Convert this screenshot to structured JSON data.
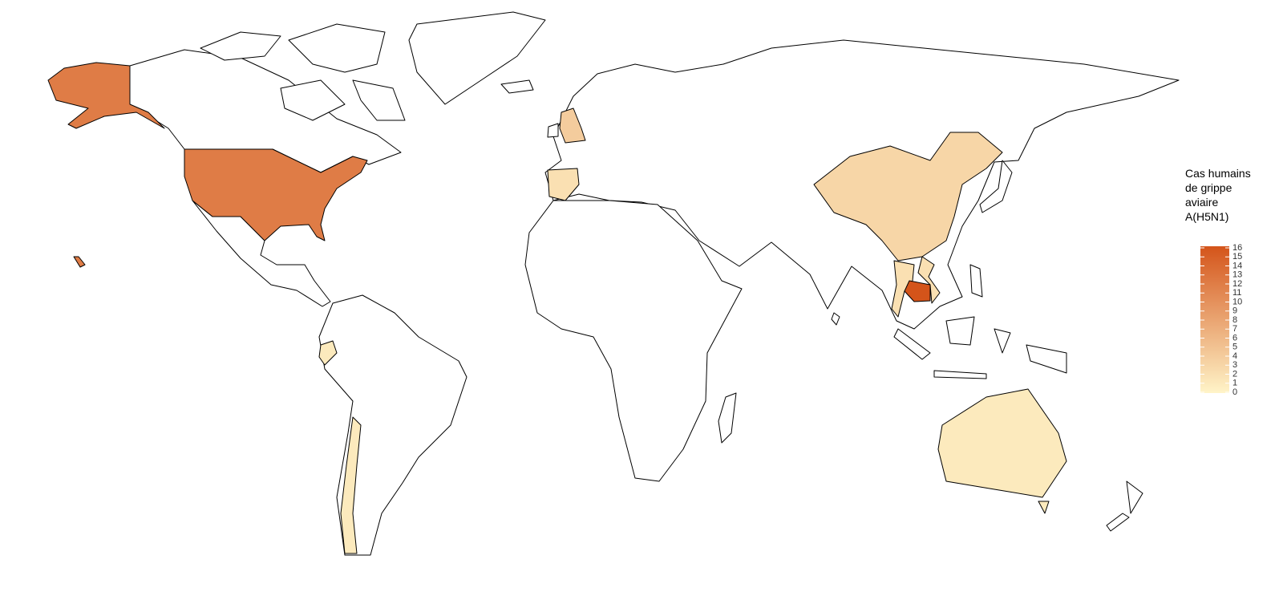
{
  "chart_data": {
    "type": "choropleth",
    "legend_title": "Cas humains de grippe aviaire A(H5N1)",
    "values": [
      12,
      4,
      2,
      3,
      2,
      2,
      16,
      1,
      1,
      1
    ],
    "colorscale": [
      "#fff4c8",
      "#d4541a"
    ],
    "scale_lim": [
      0,
      16
    ],
    "ticks": [
      0,
      1,
      2,
      3,
      4,
      5,
      6,
      7,
      8,
      9,
      10,
      11,
      12,
      13,
      14,
      15,
      16
    ]
  }
}
